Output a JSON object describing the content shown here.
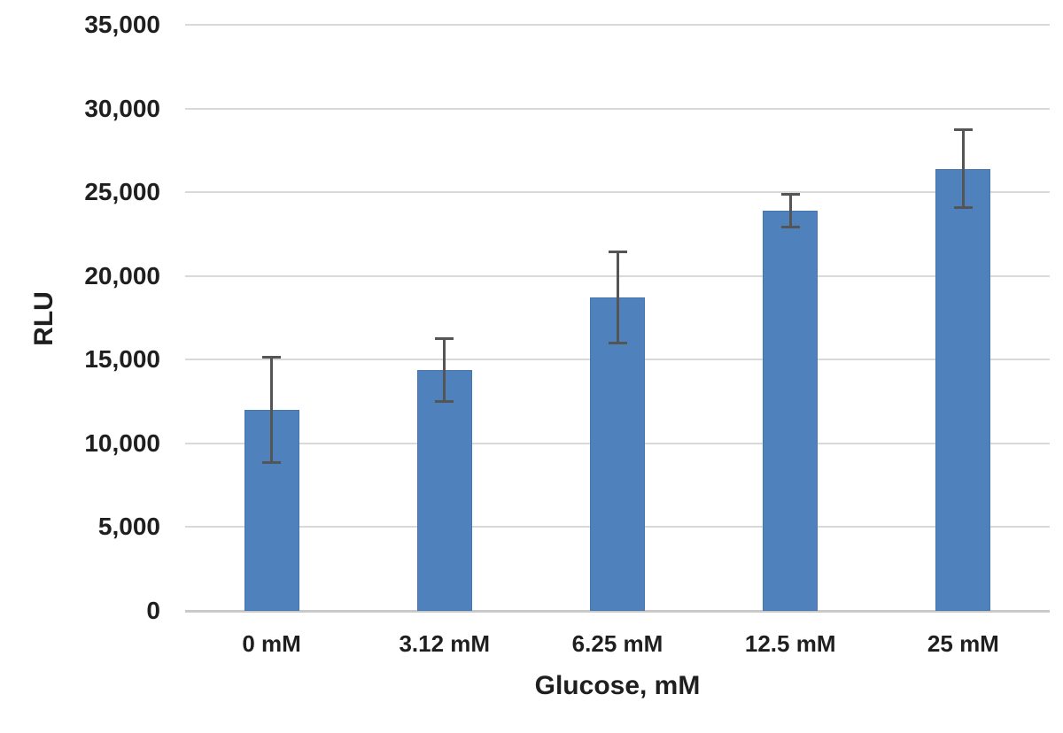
{
  "chart_data": {
    "type": "bar",
    "title": "",
    "xlabel": "Glucose, mM",
    "ylabel": "RLU",
    "categories": [
      "0 mM",
      "3.12 mM",
      "6.25 mM",
      "12.5 mM",
      "25 mM"
    ],
    "values": [
      12000,
      14400,
      18700,
      23900,
      26400
    ],
    "error_bars": [
      3250,
      1950,
      2800,
      1050,
      2400
    ],
    "ylim": [
      0,
      35000
    ],
    "ytick_step": 5000,
    "ytick_labels": [
      "0",
      "5,000",
      "10,000",
      "15,000",
      "20,000",
      "25,000",
      "30,000",
      "35,000"
    ],
    "grid": true,
    "legend": "none",
    "colors": {
      "bar_fill": "#4F81BD",
      "bar_edge": "#4576AF",
      "error_bar": "#555555",
      "grid_line": "#D9D9D9",
      "axis_line": "#C9C9C9",
      "text": "#1F1F1F",
      "background": "#FFFFFF"
    }
  }
}
